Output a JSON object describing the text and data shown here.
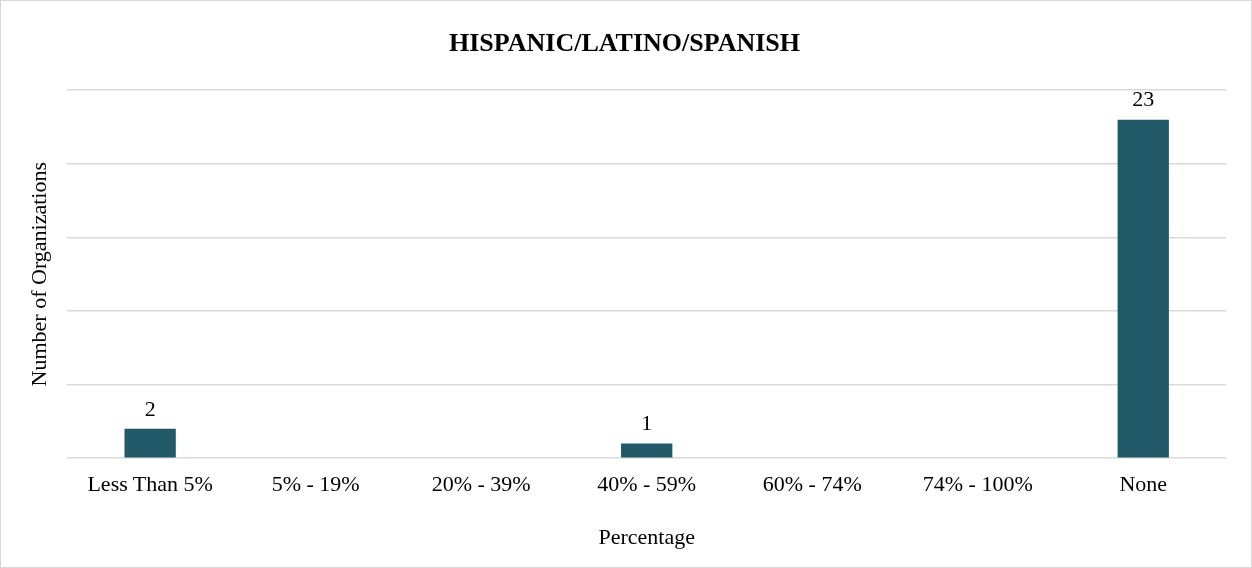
{
  "chart_data": {
    "type": "bar",
    "title": "HISPANIC/LATINO/SPANISH",
    "xlabel": "Percentage",
    "ylabel": "Number of Organizations",
    "categories": [
      "Less Than 5%",
      "5% - 19%",
      "20% - 39%",
      "40% - 59%",
      "60% - 74%",
      "74% - 100%",
      "None"
    ],
    "values": [
      2,
      0,
      0,
      1,
      0,
      0,
      23
    ],
    "value_labels": [
      "2",
      null,
      null,
      "1",
      null,
      null,
      "23"
    ],
    "color": "#215968",
    "ylim": [
      0,
      25
    ],
    "yticks": [
      {
        "value": 0,
        "label": null
      },
      {
        "value": 5,
        "label": null
      },
      {
        "value": 10,
        "label": null
      },
      {
        "value": 15,
        "label": null
      },
      {
        "value": 20,
        "label": null
      },
      {
        "value": 25,
        "label": null
      }
    ],
    "tick_labels": "x",
    "grid": "y",
    "legend": false
  }
}
